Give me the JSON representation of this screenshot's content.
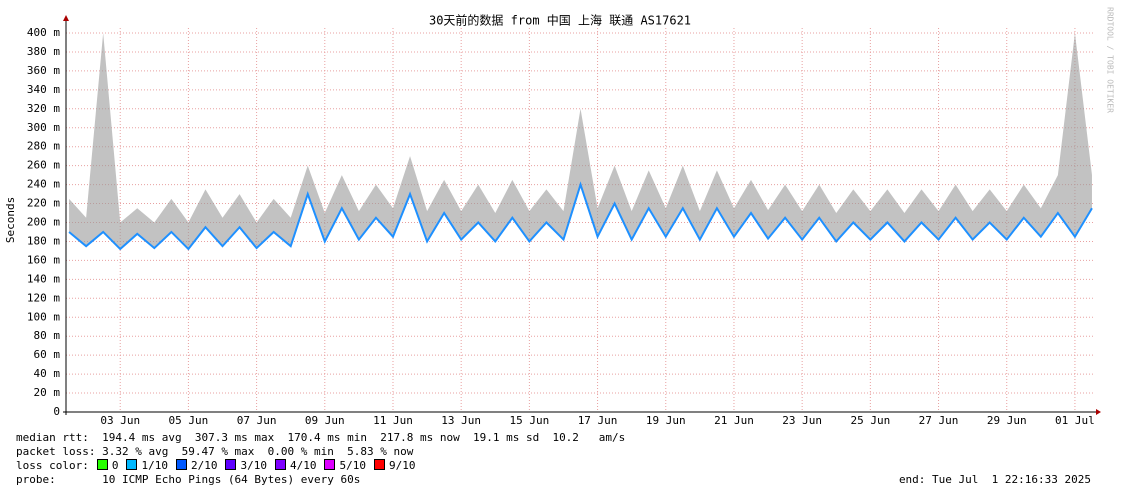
{
  "chart_data": {
    "type": "line",
    "title": "30天前的数据 from 中国 上海 联通 AS17621",
    "y_label": "Seconds",
    "watermark": "RRDTOOL / TOBI OETIKER",
    "grid": true,
    "x": [
      1.5,
      2,
      2.5,
      3,
      3.5,
      4,
      4.5,
      5,
      5.5,
      6,
      6.5,
      7,
      7.5,
      8,
      8.5,
      9,
      9.5,
      10,
      10.5,
      11,
      11.5,
      12,
      12.5,
      13,
      13.5,
      14,
      14.5,
      15,
      15.5,
      16,
      16.5,
      17,
      17.5,
      18,
      18.5,
      19,
      19.5,
      20,
      20.5,
      21,
      21.5,
      22,
      22.5,
      23,
      23.5,
      24,
      24.5,
      25,
      25.5,
      26,
      26.5,
      27,
      27.5,
      28,
      28.5,
      29,
      29.5,
      30,
      30.5,
      31,
      31.5
    ],
    "xlim": [
      1.41,
      31.53
    ],
    "xticks": [
      {
        "value": 3,
        "label": "03 Jun"
      },
      {
        "value": 5,
        "label": "05 Jun"
      },
      {
        "value": 7,
        "label": "07 Jun"
      },
      {
        "value": 9,
        "label": "09 Jun"
      },
      {
        "value": 11,
        "label": "11 Jun"
      },
      {
        "value": 13,
        "label": "13 Jun"
      },
      {
        "value": 15,
        "label": "15 Jun"
      },
      {
        "value": 17,
        "label": "17 Jun"
      },
      {
        "value": 19,
        "label": "19 Jun"
      },
      {
        "value": 21,
        "label": "21 Jun"
      },
      {
        "value": 23,
        "label": "23 Jun"
      },
      {
        "value": 25,
        "label": "25 Jun"
      },
      {
        "value": 27,
        "label": "27 Jun"
      },
      {
        "value": 29,
        "label": "29 Jun"
      },
      {
        "value": 31,
        "label": "01 Jul"
      }
    ],
    "ylim": [
      0,
      400
    ],
    "yticks": [
      0,
      {
        "value": 20,
        "label": "20 m"
      },
      {
        "value": 40,
        "label": "40 m"
      },
      {
        "value": 60,
        "label": "60 m"
      },
      {
        "value": 80,
        "label": "80 m"
      },
      {
        "value": 100,
        "label": "100 m"
      },
      {
        "value": 120,
        "label": "120 m"
      },
      {
        "value": 140,
        "label": "140 m"
      },
      {
        "value": 160,
        "label": "160 m"
      },
      {
        "value": 180,
        "label": "180 m"
      },
      {
        "value": 200,
        "label": "200 m"
      },
      {
        "value": 220,
        "label": "220 m"
      },
      {
        "value": 240,
        "label": "240 m"
      },
      {
        "value": 260,
        "label": "260 m"
      },
      {
        "value": 280,
        "label": "280 m"
      },
      {
        "value": 300,
        "label": "300 m"
      },
      {
        "value": 320,
        "label": "320 m"
      },
      {
        "value": 340,
        "label": "340 m"
      },
      {
        "value": 360,
        "label": "360 m"
      },
      {
        "value": 380,
        "label": "380 m"
      },
      {
        "value": 400,
        "label": "400 m"
      }
    ],
    "series": [
      {
        "color": "#1e90ff",
        "values": [
          190,
          175,
          190,
          172,
          188,
          173,
          190,
          172,
          195,
          175,
          195,
          173,
          190,
          175,
          230,
          180,
          215,
          182,
          205,
          185,
          230,
          180,
          210,
          182,
          200,
          180,
          205,
          180,
          200,
          182,
          240,
          185,
          220,
          182,
          215,
          185,
          215,
          182,
          215,
          185,
          210,
          183,
          205,
          182,
          205,
          180,
          200,
          182,
          200,
          180,
          200,
          182,
          205,
          182,
          200,
          182,
          205,
          185,
          210,
          185,
          215
        ]
      },
      {
        "color": "#999999",
        "values": [
          225,
          205,
          400,
          200,
          215,
          200,
          225,
          200,
          235,
          205,
          230,
          200,
          225,
          205,
          260,
          210,
          250,
          212,
          240,
          215,
          270,
          212,
          245,
          212,
          240,
          210,
          245,
          212,
          235,
          212,
          320,
          215,
          260,
          212,
          255,
          215,
          260,
          212,
          255,
          215,
          245,
          213,
          240,
          212,
          240,
          210,
          235,
          212,
          235,
          210,
          235,
          212,
          240,
          212,
          235,
          212,
          240,
          215,
          250,
          400,
          250
        ]
      }
    ],
    "stats": [
      {
        "label": "median rtt:",
        "text": " 194.4 ms avg  307.3 ms max  170.4 ms min  217.8 ms now  19.1 ms sd  10.2   am/s"
      },
      {
        "label": "packet loss:",
        "text": "3.32 % avg  59.47 % max  0.00 % min  5.83 % now"
      }
    ],
    "loss_label": "loss color:",
    "loss_colors": [
      {
        "label": "0",
        "color": "#26ff00"
      },
      {
        "label": "1/10",
        "color": "#00b8ff"
      },
      {
        "label": "2/10",
        "color": "#0059ff"
      },
      {
        "label": "3/10",
        "color": "#5e00ff"
      },
      {
        "label": "4/10",
        "color": "#7e00ff"
      },
      {
        "label": "5/10",
        "color": "#dd00ff"
      },
      {
        "label": "9/10",
        "color": "#ff0000"
      }
    ],
    "probe_label": "probe:",
    "probe": "10 ICMP Echo Pings (64 Bytes) every 60s",
    "end": "end: Tue Jul  1 22:16:33 2025"
  }
}
